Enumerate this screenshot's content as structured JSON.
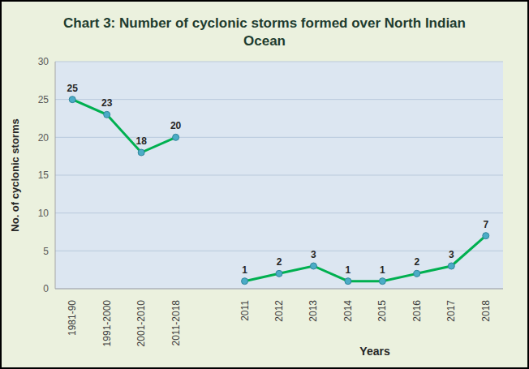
{
  "chart_data": {
    "type": "line",
    "title": "Chart 3: Number of cyclonic storms formed over North Indian Ocean",
    "x_label": "Years",
    "y_label": "No. of cyclonic storms",
    "categories": [
      "1981-90",
      "1991-2000",
      "2001-2010",
      "2011-2018",
      null,
      "2011",
      "2012",
      "2013",
      "2014",
      "2015",
      "2016",
      "2017",
      "2018"
    ],
    "values": [
      25,
      23,
      18,
      20,
      null,
      1,
      2,
      3,
      1,
      1,
      2,
      3,
      7
    ],
    "color": "#00b050",
    "marker": "circle",
    "ylim": [
      0,
      30
    ],
    "yticks": [
      0,
      5,
      10,
      15,
      20,
      25,
      30
    ],
    "grid": true,
    "data_labels": true
  }
}
